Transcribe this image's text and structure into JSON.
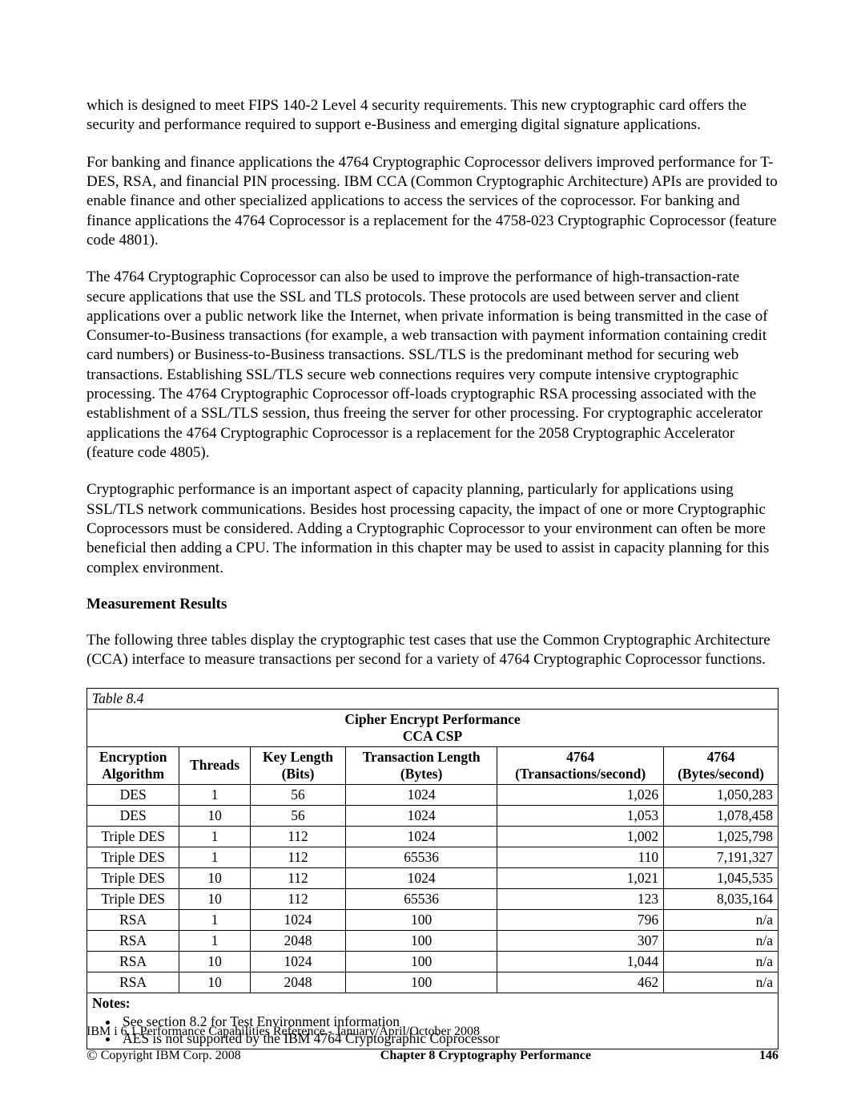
{
  "paragraphs": {
    "p1": "which is designed to meet FIPS 140-2 Level 4 security requirements. This new cryptographic card offers the security and performance required to support e-Business and emerging digital signature applications.",
    "p2": "For banking and finance applications the 4764 Cryptographic Coprocessor delivers improved performance for T-DES, RSA, and financial PIN processing. IBM CCA (Common Cryptographic Architecture) APIs are provided to enable finance and other specialized applications to access the services of the coprocessor. For banking and finance applications the 4764 Coprocessor is a replacement for the 4758-023 Cryptographic Coprocessor (feature code 4801).",
    "p3": "The 4764 Cryptographic Coprocessor can also be used to improve the performance of high-transaction-rate secure applications that use the SSL and TLS protocols. These protocols are used between server and client applications over a public network like the Internet, when private information is being transmitted in the case of Consumer-to-Business transactions (for example, a web transaction with payment information containing credit card numbers) or Business-to-Business transactions. SSL/TLS is the predominant method for securing web transactions. Establishing SSL/TLS secure web connections requires very compute intensive cryptographic processing. The 4764 Cryptographic Coprocessor off-loads cryptographic RSA processing associated with the establishment of a SSL/TLS session, thus freeing the server for other processing. For cryptographic accelerator applications the 4764 Cryptographic Coprocessor is a replacement for the 2058 Cryptographic Accelerator (feature code 4805).",
    "p4": "Cryptographic performance is an important aspect of capacity planning, particularly for applications using SSL/TLS network communications. Besides host processing capacity, the impact of one or more Cryptographic Coprocessors must be considered. Adding a Cryptographic Coprocessor to your environment can often be more beneficial then adding a CPU. The information in this chapter may be used to assist in capacity planning for this complex environment.",
    "heading": "Measurement Results",
    "p5": "The following three tables display the cryptographic test cases that use the Common Cryptographic Architecture (CCA) interface to measure transactions per second for a variety of 4764 Cryptographic Coprocessor functions."
  },
  "table": {
    "caption": "Table 8.4",
    "title_line1": "Cipher Encrypt Performance",
    "title_line2": "CCA CSP",
    "columns": {
      "c1a": "Encryption",
      "c1b": "Algorithm",
      "c2": "Threads",
      "c3a": "Key Length",
      "c3b": "(Bits)",
      "c4a": "Transaction Length",
      "c4b": "(Bytes)",
      "c5a": "4764",
      "c5b": "(Transactions/second)",
      "c6a": "4764",
      "c6b": "(Bytes/second)"
    },
    "rows": [
      {
        "alg": "DES",
        "threads": "1",
        "keylen": "56",
        "txlen": "1024",
        "tps": "1,026",
        "bps": "1,050,283"
      },
      {
        "alg": "DES",
        "threads": "10",
        "keylen": "56",
        "txlen": "1024",
        "tps": "1,053",
        "bps": "1,078,458"
      },
      {
        "alg": "Triple DES",
        "threads": "1",
        "keylen": "112",
        "txlen": "1024",
        "tps": "1,002",
        "bps": "1,025,798"
      },
      {
        "alg": "Triple DES",
        "threads": "1",
        "keylen": "112",
        "txlen": "65536",
        "tps": "110",
        "bps": "7,191,327"
      },
      {
        "alg": "Triple DES",
        "threads": "10",
        "keylen": "112",
        "txlen": "1024",
        "tps": "1,021",
        "bps": "1,045,535"
      },
      {
        "alg": "Triple DES",
        "threads": "10",
        "keylen": "112",
        "txlen": "65536",
        "tps": "123",
        "bps": "8,035,164"
      },
      {
        "alg": "RSA",
        "threads": "1",
        "keylen": "1024",
        "txlen": "100",
        "tps": "796",
        "bps": "n/a"
      },
      {
        "alg": "RSA",
        "threads": "1",
        "keylen": "2048",
        "txlen": "100",
        "tps": "307",
        "bps": "n/a"
      },
      {
        "alg": "RSA",
        "threads": "10",
        "keylen": "1024",
        "txlen": "100",
        "tps": "1,044",
        "bps": "n/a"
      },
      {
        "alg": "RSA",
        "threads": "10",
        "keylen": "2048",
        "txlen": "100",
        "tps": "462",
        "bps": "n/a"
      }
    ],
    "notes_label": "Notes:",
    "notes": [
      "See section 8.2 for Test Environment information",
      "AES is not supported by the IBM 4764 Cryptographic Coprocessor"
    ]
  },
  "footer": {
    "doc_title": "IBM i 6.1 Performance Capabilities Reference - January/April/October 2008",
    "copyright": "Copyright IBM Corp. 2008",
    "chapter": "Chapter 8 Cryptography Performance",
    "page": "146"
  }
}
